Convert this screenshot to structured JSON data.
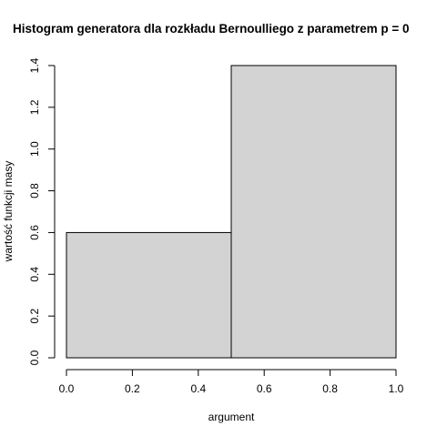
{
  "chart_data": {
    "type": "bar",
    "title": "Histogram generatora dla rozkładu Bernoulliego z parametrem p = 0",
    "xlabel": "argument",
    "ylabel": "wartość funkcji masy",
    "xlim": [
      0.0,
      1.0
    ],
    "ylim": [
      0.0,
      1.4
    ],
    "x_ticks": [
      "0.0",
      "0.2",
      "0.4",
      "0.6",
      "0.8",
      "1.0"
    ],
    "y_ticks": [
      "0.0",
      "0.2",
      "0.4",
      "0.6",
      "0.8",
      "1.0",
      "1.2",
      "1.4"
    ],
    "bins": [
      {
        "from": 0.0,
        "to": 0.5,
        "value": 0.6
      },
      {
        "from": 0.5,
        "to": 1.0,
        "value": 1.4
      }
    ],
    "bar_color": "#d3d3d3",
    "grid": false,
    "legend": "none"
  }
}
